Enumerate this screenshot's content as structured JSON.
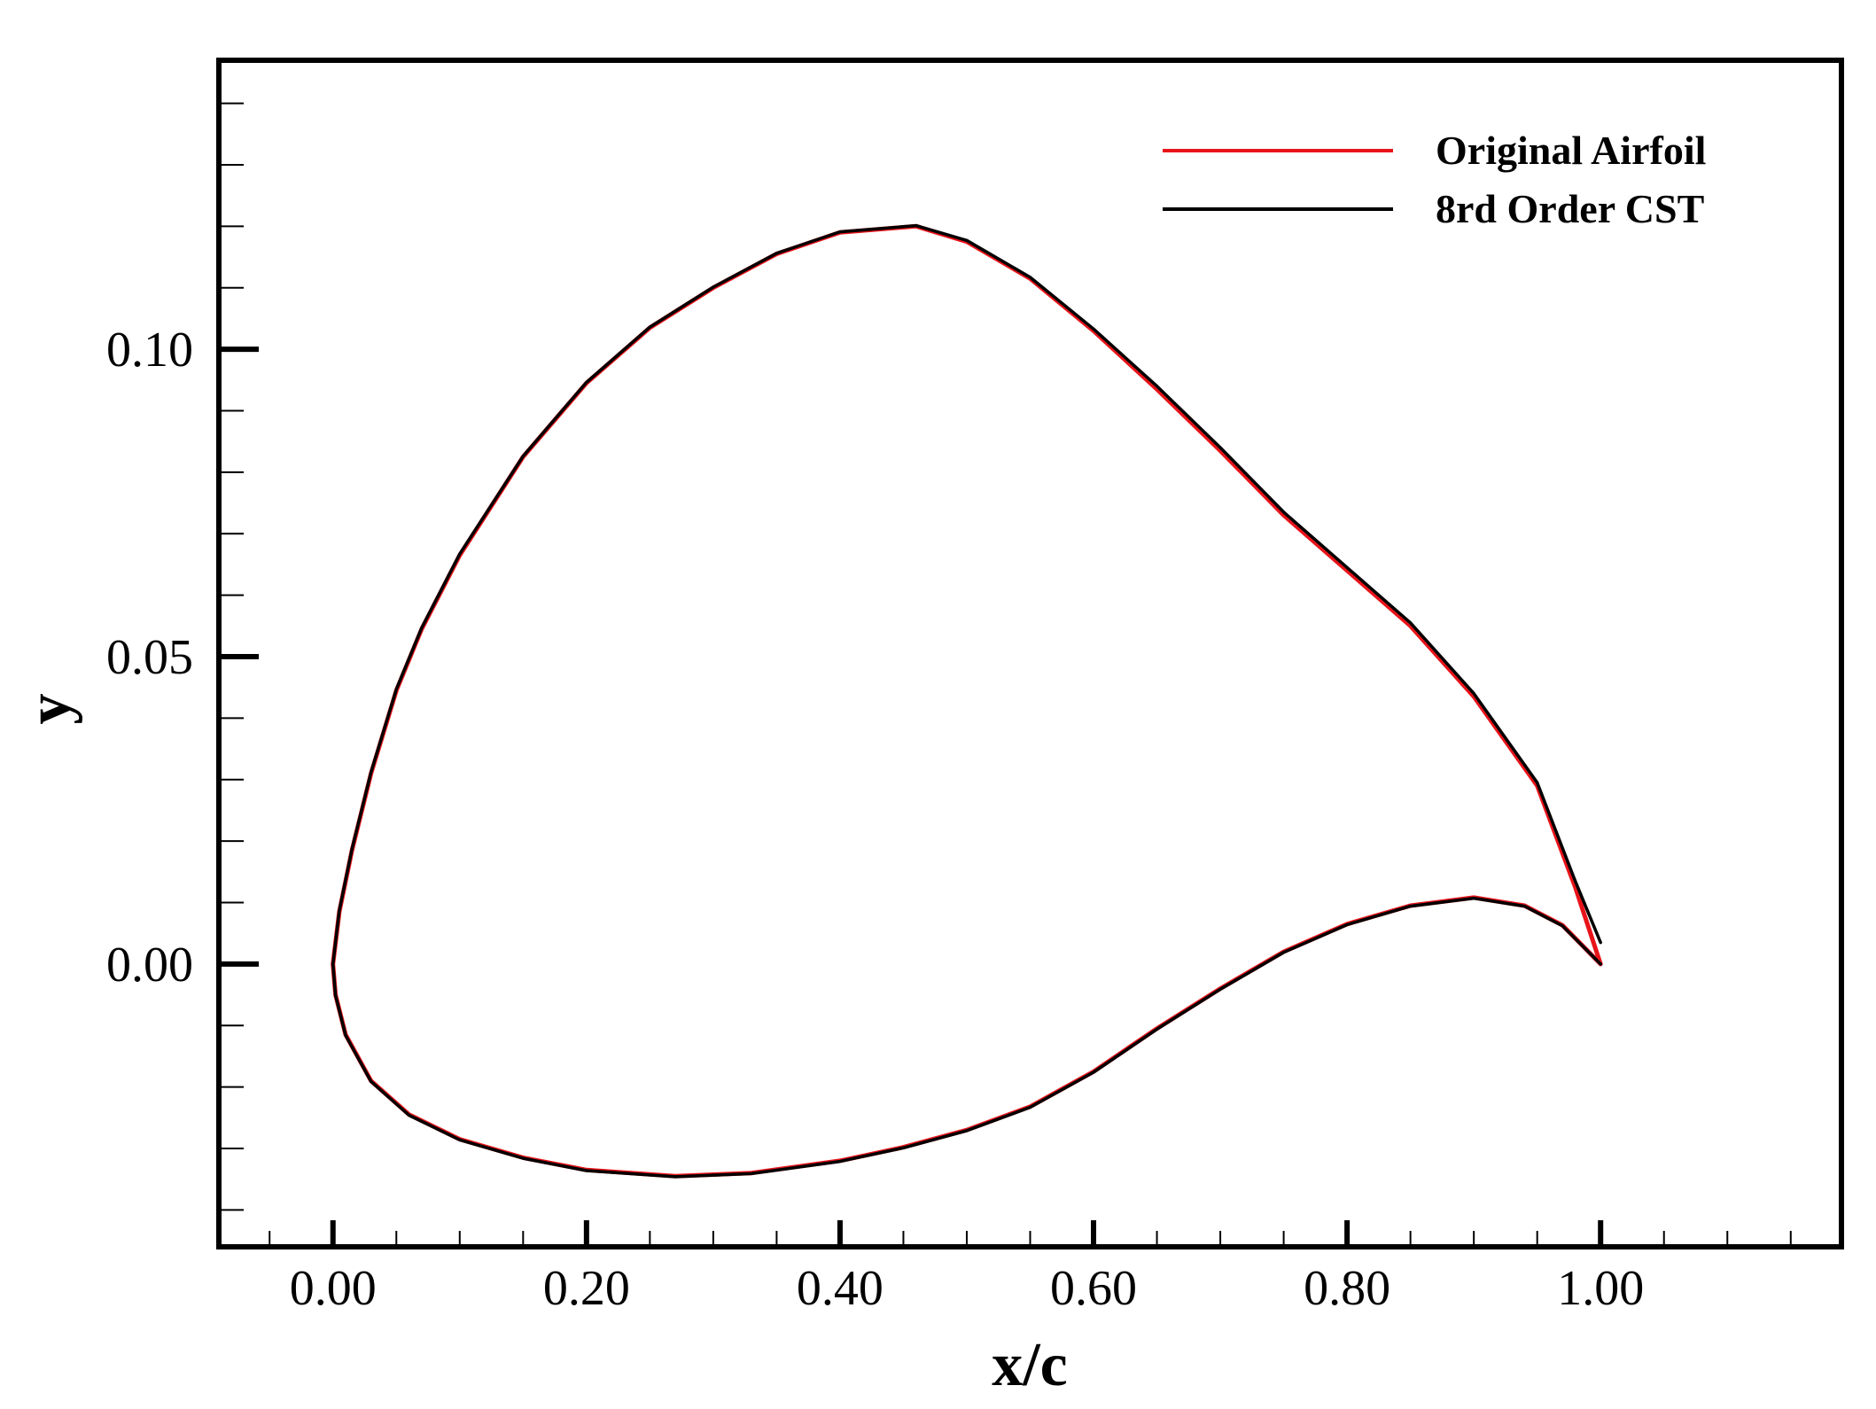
{
  "chart_data": {
    "type": "line",
    "title": "",
    "xlabel": "x/c",
    "ylabel": "y",
    "xlim": [
      -0.09,
      1.19
    ],
    "ylim": [
      -0.046,
      0.147
    ],
    "grid": false,
    "legend_position": "top-right",
    "x_ticks": {
      "major": [
        0.0,
        0.2,
        0.4,
        0.6,
        0.8,
        1.0
      ],
      "labels": [
        "0.00",
        "0.20",
        "0.40",
        "0.60",
        "0.80",
        "1.00"
      ],
      "minor_step": 0.05
    },
    "y_ticks": {
      "major": [
        0.0,
        0.05,
        0.1
      ],
      "labels": [
        "0.00",
        "0.05",
        "0.10"
      ],
      "minor_step": 0.01
    },
    "series": [
      {
        "name": "Original Airfoil",
        "color": "#e8141a",
        "points": [
          [
            1.0,
            0.0
          ],
          [
            0.98,
            0.0125
          ],
          [
            0.95,
            0.029
          ],
          [
            0.9,
            0.0435
          ],
          [
            0.85,
            0.055
          ],
          [
            0.8,
            0.064
          ],
          [
            0.75,
            0.073
          ],
          [
            0.7,
            0.0835
          ],
          [
            0.65,
            0.0935
          ],
          [
            0.6,
            0.103
          ],
          [
            0.55,
            0.1115
          ],
          [
            0.5,
            0.1175
          ],
          [
            0.46,
            0.12
          ],
          [
            0.4,
            0.119
          ],
          [
            0.35,
            0.1155
          ],
          [
            0.3,
            0.11
          ],
          [
            0.25,
            0.1035
          ],
          [
            0.2,
            0.0945
          ],
          [
            0.15,
            0.0825
          ],
          [
            0.1,
            0.0665
          ],
          [
            0.07,
            0.0545
          ],
          [
            0.05,
            0.0445
          ],
          [
            0.03,
            0.031
          ],
          [
            0.015,
            0.0185
          ],
          [
            0.005,
            0.0085
          ],
          [
            0.0,
            0.0
          ],
          [
            0.002,
            -0.005
          ],
          [
            0.01,
            -0.0115
          ],
          [
            0.03,
            -0.019
          ],
          [
            0.06,
            -0.0245
          ],
          [
            0.1,
            -0.0285
          ],
          [
            0.15,
            -0.0315
          ],
          [
            0.2,
            -0.0335
          ],
          [
            0.27,
            -0.0345
          ],
          [
            0.33,
            -0.034
          ],
          [
            0.4,
            -0.032
          ],
          [
            0.45,
            -0.0298
          ],
          [
            0.5,
            -0.027
          ],
          [
            0.55,
            -0.0232
          ],
          [
            0.6,
            -0.0175
          ],
          [
            0.65,
            -0.0105
          ],
          [
            0.7,
            -0.004
          ],
          [
            0.75,
            0.002
          ],
          [
            0.8,
            0.0065
          ],
          [
            0.85,
            0.0095
          ],
          [
            0.9,
            0.0108
          ],
          [
            0.94,
            0.0095
          ],
          [
            0.97,
            0.0063
          ],
          [
            1.0,
            0.0
          ]
        ]
      },
      {
        "name": "8rd Order CST",
        "color": "#000000",
        "points": [
          [
            1.0,
            0.0035
          ],
          [
            0.98,
            0.0135
          ],
          [
            0.95,
            0.0295
          ],
          [
            0.9,
            0.044
          ],
          [
            0.85,
            0.0555
          ],
          [
            0.8,
            0.0645
          ],
          [
            0.75,
            0.0735
          ],
          [
            0.7,
            0.084
          ],
          [
            0.65,
            0.094
          ],
          [
            0.6,
            0.1033
          ],
          [
            0.55,
            0.1117
          ],
          [
            0.5,
            0.1177
          ],
          [
            0.46,
            0.1201
          ],
          [
            0.4,
            0.1191
          ],
          [
            0.35,
            0.1156
          ],
          [
            0.3,
            0.1101
          ],
          [
            0.25,
            0.1036
          ],
          [
            0.2,
            0.0946
          ],
          [
            0.15,
            0.0826
          ],
          [
            0.1,
            0.0667
          ],
          [
            0.07,
            0.0547
          ],
          [
            0.05,
            0.0447
          ],
          [
            0.03,
            0.0312
          ],
          [
            0.015,
            0.0187
          ],
          [
            0.005,
            0.0087
          ],
          [
            0.0,
            0.0
          ],
          [
            0.002,
            -0.0051
          ],
          [
            0.01,
            -0.0116
          ],
          [
            0.03,
            -0.0191
          ],
          [
            0.06,
            -0.0246
          ],
          [
            0.1,
            -0.0286
          ],
          [
            0.15,
            -0.0316
          ],
          [
            0.2,
            -0.0336
          ],
          [
            0.27,
            -0.0346
          ],
          [
            0.33,
            -0.0341
          ],
          [
            0.4,
            -0.0321
          ],
          [
            0.45,
            -0.0299
          ],
          [
            0.5,
            -0.0271
          ],
          [
            0.55,
            -0.0233
          ],
          [
            0.6,
            -0.0176
          ],
          [
            0.65,
            -0.0106
          ],
          [
            0.7,
            -0.0041
          ],
          [
            0.75,
            0.0019
          ],
          [
            0.8,
            0.0064
          ],
          [
            0.85,
            0.0094
          ],
          [
            0.9,
            0.0107
          ],
          [
            0.94,
            0.0094
          ],
          [
            0.97,
            0.0062
          ],
          [
            1.0,
            0.0
          ]
        ]
      }
    ]
  }
}
